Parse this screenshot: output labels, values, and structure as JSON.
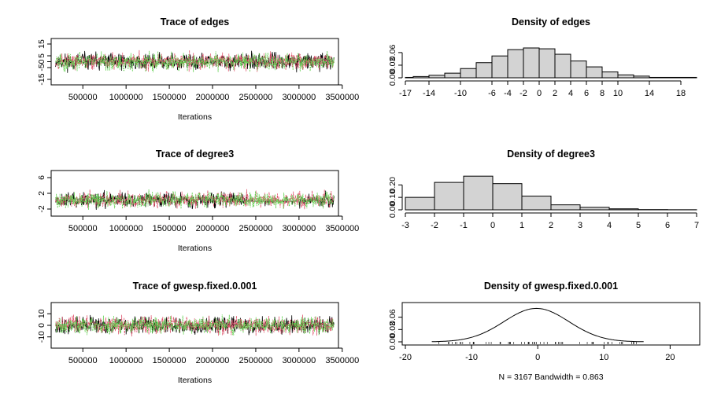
{
  "chart_data": [
    {
      "type": "line",
      "title": "Trace of edges",
      "xlabel": "Iterations",
      "ylabel": "",
      "xlim": [
        170000,
        3420000
      ],
      "ylim": [
        -17,
        17
      ],
      "x_ticks": [
        "500000",
        "1000000",
        "1500000",
        "2000000",
        "2500000",
        "3000000",
        "3500000"
      ],
      "y_ticks": [
        "-15",
        "-5",
        "0",
        "5",
        "15"
      ],
      "series_colors": [
        "#000000",
        "#df536b",
        "#61d04f"
      ],
      "trace": {
        "center": 0,
        "spread": 4.5,
        "seed": 11
      }
    },
    {
      "type": "bar",
      "title": "Density of edges",
      "xlabel": "",
      "ylabel": "",
      "xlim": [
        -17,
        20
      ],
      "ylim": [
        0,
        0.086
      ],
      "x_ticks": [
        "-17",
        "-14",
        "-10",
        "-6",
        "-4",
        "-2",
        "0",
        "2",
        "4",
        "6",
        "8",
        "10",
        "14",
        "18"
      ],
      "y_ticks": [
        "0.00",
        "0.03",
        "0.06"
      ],
      "bins": [
        {
          "from": -17,
          "to": -16,
          "value": 0.001
        },
        {
          "from": -16,
          "to": -14,
          "value": 0.003
        },
        {
          "from": -14,
          "to": -12,
          "value": 0.006
        },
        {
          "from": -12,
          "to": -10,
          "value": 0.011
        },
        {
          "from": -10,
          "to": -8,
          "value": 0.022
        },
        {
          "from": -8,
          "to": -6,
          "value": 0.036
        },
        {
          "from": -6,
          "to": -4,
          "value": 0.052
        },
        {
          "from": -4,
          "to": -2,
          "value": 0.067
        },
        {
          "from": -2,
          "to": 0,
          "value": 0.071
        },
        {
          "from": 0,
          "to": 2,
          "value": 0.069
        },
        {
          "from": 2,
          "to": 4,
          "value": 0.056
        },
        {
          "from": 4,
          "to": 6,
          "value": 0.04
        },
        {
          "from": 6,
          "to": 8,
          "value": 0.026
        },
        {
          "from": 8,
          "to": 10,
          "value": 0.014
        },
        {
          "from": 10,
          "to": 12,
          "value": 0.007
        },
        {
          "from": 12,
          "to": 14,
          "value": 0.004
        },
        {
          "from": 14,
          "to": 20,
          "value": 0.001
        }
      ]
    },
    {
      "type": "line",
      "title": "Trace of degree3",
      "xlabel": "Iterations",
      "ylabel": "",
      "xlim": [
        170000,
        3420000
      ],
      "ylim": [
        -3,
        7
      ],
      "x_ticks": [
        "500000",
        "1000000",
        "1500000",
        "2000000",
        "2500000",
        "3000000",
        "3500000"
      ],
      "y_ticks": [
        "-2",
        "2",
        "6"
      ],
      "series_colors": [
        "#000000",
        "#df536b",
        "#61d04f"
      ],
      "trace": {
        "center": 0.3,
        "spread": 1.2,
        "seed": 23
      },
      "flat_segment": {
        "from": 2400000,
        "to": 3000000,
        "value": 0
      }
    },
    {
      "type": "bar",
      "title": "Density of degree3",
      "xlabel": "",
      "ylabel": "",
      "xlim": [
        -3,
        7
      ],
      "ylim": [
        0,
        0.29
      ],
      "x_ticks": [
        "-3",
        "-2",
        "-1",
        "0",
        "1",
        "2",
        "3",
        "4",
        "5",
        "6",
        "7"
      ],
      "y_ticks": [
        "0.00",
        "0.10",
        "0.20"
      ],
      "bins": [
        {
          "from": -3,
          "to": -2,
          "value": 0.1
        },
        {
          "from": -2,
          "to": -1,
          "value": 0.22
        },
        {
          "from": -1,
          "to": 0,
          "value": 0.27
        },
        {
          "from": 0,
          "to": 1,
          "value": 0.21
        },
        {
          "from": 1,
          "to": 2,
          "value": 0.11
        },
        {
          "from": 2,
          "to": 3,
          "value": 0.04
        },
        {
          "from": 3,
          "to": 4,
          "value": 0.02
        },
        {
          "from": 4,
          "to": 5,
          "value": 0.008
        },
        {
          "from": 5,
          "to": 6,
          "value": 0.002
        },
        {
          "from": 6,
          "to": 7,
          "value": 0.001
        }
      ]
    },
    {
      "type": "line",
      "title": "Trace of gwesp.fixed.0.001",
      "xlabel": "Iterations",
      "ylabel": "",
      "xlim": [
        170000,
        3420000
      ],
      "ylim": [
        -17,
        17
      ],
      "x_ticks": [
        "500000",
        "1000000",
        "1500000",
        "2000000",
        "2500000",
        "3000000",
        "3500000"
      ],
      "y_ticks": [
        "-10",
        "0",
        "10"
      ],
      "series_colors": [
        "#000000",
        "#df536b",
        "#61d04f"
      ],
      "trace": {
        "center": 0,
        "spread": 4.6,
        "seed": 37
      }
    },
    {
      "type": "line",
      "title": "Density of gwesp.fixed.0.001",
      "xlabel": "N = 3167   Bandwidth = 0.863",
      "ylabel": "",
      "xlim": [
        -20,
        24
      ],
      "ylim": [
        0,
        0.088
      ],
      "x_ticks": [
        "-20",
        "-10",
        "0",
        "10",
        "20"
      ],
      "y_ticks": [
        "0.00",
        "0.03",
        "0.06"
      ],
      "density": {
        "mean": -0.2,
        "sd": 4.9,
        "from": -16,
        "to": 16
      }
    }
  ]
}
